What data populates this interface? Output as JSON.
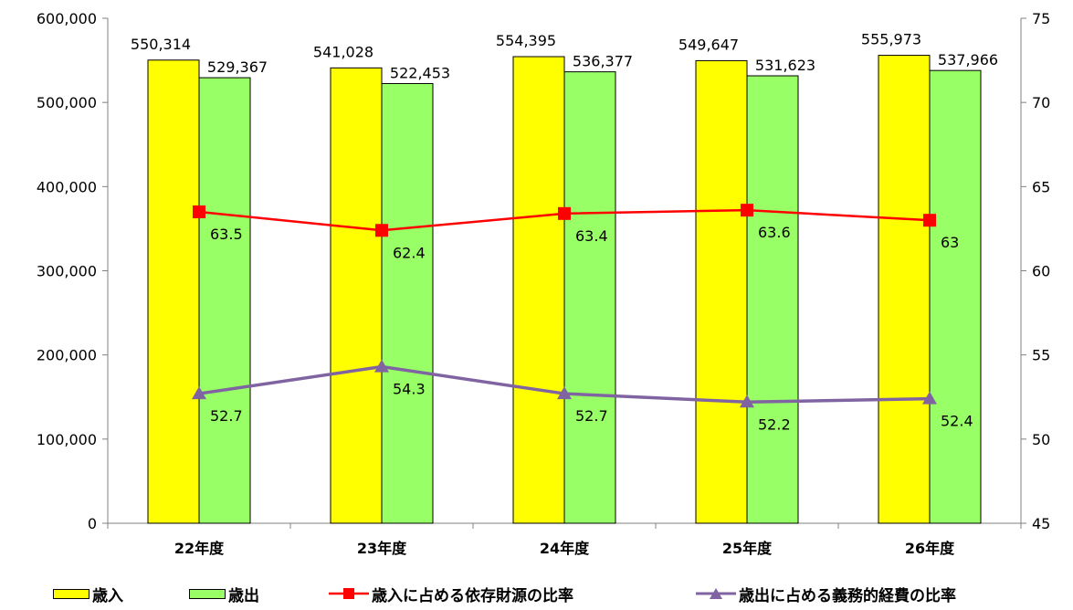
{
  "chart_data": {
    "type": "bar",
    "categories": [
      "22年度",
      "23年度",
      "24年度",
      "25年度",
      "26年度"
    ],
    "series": [
      {
        "name": "歳入",
        "type": "bar",
        "axis": "left",
        "color": "#FFFF00",
        "values": [
          550314,
          541028,
          554395,
          549647,
          555973
        ],
        "labels": [
          "550,314",
          "541,028",
          "554,395",
          "549,647",
          "555,973"
        ]
      },
      {
        "name": "歳出",
        "type": "bar",
        "axis": "left",
        "color": "#99FF66",
        "values": [
          529367,
          522453,
          536377,
          531623,
          537966
        ],
        "labels": [
          "529,367",
          "522,453",
          "536,377",
          "531,623",
          "537,966"
        ]
      },
      {
        "name": "歳入に占める依存財源の比率",
        "type": "line",
        "axis": "right",
        "color": "#FF0000",
        "marker": "square",
        "values": [
          63.5,
          62.4,
          63.4,
          63.6,
          63
        ],
        "labels": [
          "63.5",
          "62.4",
          "63.4",
          "63.6",
          "63"
        ]
      },
      {
        "name": "歳出に占める義務的経費の比率",
        "type": "line",
        "axis": "right",
        "color": "#8064A2",
        "marker": "triangle",
        "values": [
          52.7,
          54.3,
          52.7,
          52.2,
          52.4
        ],
        "labels": [
          "52.7",
          "54.3",
          "52.7",
          "52.2",
          "52.4"
        ]
      }
    ],
    "y_left": {
      "min": 0,
      "max": 600000,
      "ticks": [
        "0",
        "100,000",
        "200,000",
        "300,000",
        "400,000",
        "500,000",
        "600,000"
      ]
    },
    "y_right": {
      "min": 45,
      "max": 75,
      "ticks": [
        "45",
        "50",
        "55",
        "60",
        "65",
        "70",
        "75"
      ]
    },
    "grid": false,
    "legend_position": "bottom"
  }
}
